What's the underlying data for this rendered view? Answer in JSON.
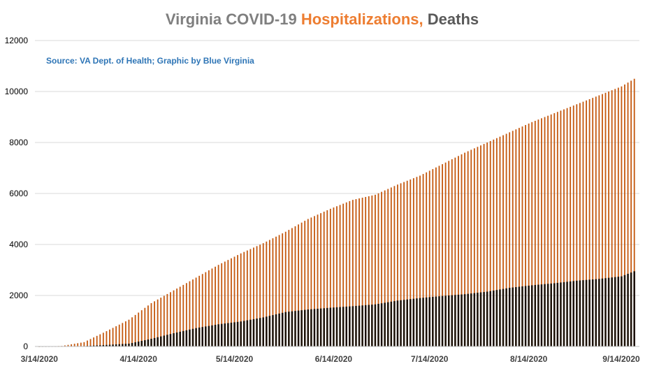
{
  "chart_data": {
    "type": "bar",
    "title_parts": [
      {
        "text": "Virginia COVID-19 ",
        "color": "#7f7f7f"
      },
      {
        "text": "Hospitalizations, ",
        "color": "#ed7d31"
      },
      {
        "text": "Deaths",
        "color": "#595959"
      }
    ],
    "annotation": "Source: VA Dept. of Health; Graphic by Blue Virginia",
    "annotation_color": "#2e75b6",
    "ylim": [
      0,
      12000
    ],
    "y_ticks": [
      "0",
      "2000",
      "4000",
      "6000",
      "8000",
      "10000",
      "12000"
    ],
    "x_tick_labels": [
      "3/14/2020",
      "4/14/2020",
      "5/14/2020",
      "6/14/2020",
      "7/14/2020",
      "8/14/2020",
      "9/14/2020"
    ],
    "grid": true,
    "legend": "none",
    "colors": {
      "hospitalizations": "#c55a11",
      "deaths": "#1a0f05",
      "grid": "#d9d9d9"
    },
    "date_range": [
      "3/14/2020",
      "9/16/2020"
    ],
    "series": [
      {
        "key": "hospitalizations",
        "points": [
          [
            "3/14/2020",
            0
          ],
          [
            "3/21/2020",
            20
          ],
          [
            "3/28/2020",
            170
          ],
          [
            "4/4/2020",
            600
          ],
          [
            "4/11/2020",
            1050
          ],
          [
            "4/18/2020",
            1700
          ],
          [
            "4/25/2020",
            2200
          ],
          [
            "5/2/2020",
            2700
          ],
          [
            "5/9/2020",
            3200
          ],
          [
            "5/16/2020",
            3650
          ],
          [
            "5/23/2020",
            4050
          ],
          [
            "5/30/2020",
            4500
          ],
          [
            "6/6/2020",
            5000
          ],
          [
            "6/13/2020",
            5400
          ],
          [
            "6/20/2020",
            5750
          ],
          [
            "6/27/2020",
            5950
          ],
          [
            "7/4/2020",
            6350
          ],
          [
            "7/11/2020",
            6700
          ],
          [
            "7/18/2020",
            7150
          ],
          [
            "7/25/2020",
            7600
          ],
          [
            "8/1/2020",
            8000
          ],
          [
            "8/8/2020",
            8400
          ],
          [
            "8/15/2020",
            8800
          ],
          [
            "8/22/2020",
            9150
          ],
          [
            "8/29/2020",
            9500
          ],
          [
            "9/5/2020",
            9850
          ],
          [
            "9/12/2020",
            10200
          ],
          [
            "9/16/2020",
            10500
          ]
        ]
      },
      {
        "key": "deaths",
        "points": [
          [
            "3/14/2020",
            0
          ],
          [
            "3/21/2020",
            2
          ],
          [
            "3/28/2020",
            15
          ],
          [
            "4/4/2020",
            60
          ],
          [
            "4/11/2020",
            110
          ],
          [
            "4/18/2020",
            300
          ],
          [
            "4/25/2020",
            520
          ],
          [
            "5/2/2020",
            720
          ],
          [
            "5/9/2020",
            870
          ],
          [
            "5/16/2020",
            980
          ],
          [
            "5/23/2020",
            1140
          ],
          [
            "5/30/2020",
            1350
          ],
          [
            "6/6/2020",
            1450
          ],
          [
            "6/13/2020",
            1520
          ],
          [
            "6/20/2020",
            1580
          ],
          [
            "6/27/2020",
            1650
          ],
          [
            "7/4/2020",
            1800
          ],
          [
            "7/11/2020",
            1900
          ],
          [
            "7/18/2020",
            1980
          ],
          [
            "7/25/2020",
            2050
          ],
          [
            "8/1/2020",
            2150
          ],
          [
            "8/8/2020",
            2300
          ],
          [
            "8/15/2020",
            2400
          ],
          [
            "8/22/2020",
            2480
          ],
          [
            "8/29/2020",
            2580
          ],
          [
            "9/5/2020",
            2650
          ],
          [
            "9/12/2020",
            2750
          ],
          [
            "9/16/2020",
            2950
          ]
        ]
      }
    ]
  }
}
